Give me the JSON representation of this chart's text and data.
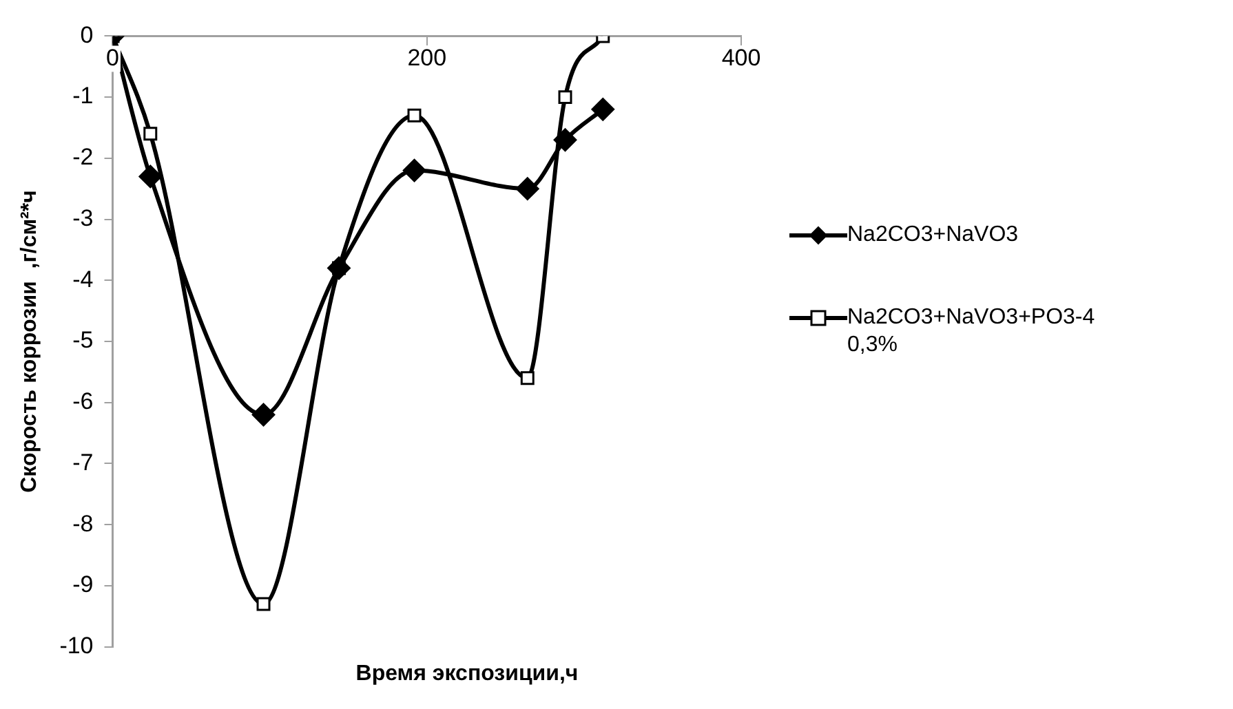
{
  "chart_data": {
    "type": "line",
    "xlabel": "Время экспозиции,ч",
    "ylabel": "Скорость коррозии  ,г/см²*ч",
    "xlim": [
      0,
      400
    ],
    "xticks": [
      0,
      200,
      400
    ],
    "ylim": [
      -10,
      0
    ],
    "yticks": [
      0,
      -1,
      -2,
      -3,
      -4,
      -5,
      -6,
      -7,
      -8,
      -9,
      -10
    ],
    "grid": false,
    "legend": "right",
    "series": [
      {
        "name": "Na2CO3+NaVO3",
        "color": "#000000",
        "marker": "diamond",
        "x": [
          0,
          24,
          96,
          144,
          192,
          264,
          288,
          312
        ],
        "values": [
          0,
          -2.3,
          -6.2,
          -3.8,
          -2.2,
          -2.5,
          -1.7,
          -1.2
        ]
      },
      {
        "name": "Na2CO3+NaVO3+PO3-4 0,3%",
        "color": "#000000",
        "marker": "square",
        "x": [
          0,
          24,
          96,
          144,
          192,
          264,
          288,
          312
        ],
        "values": [
          0,
          -1.6,
          -9.3,
          -3.8,
          -1.3,
          -5.6,
          -1.0,
          0
        ]
      }
    ]
  }
}
